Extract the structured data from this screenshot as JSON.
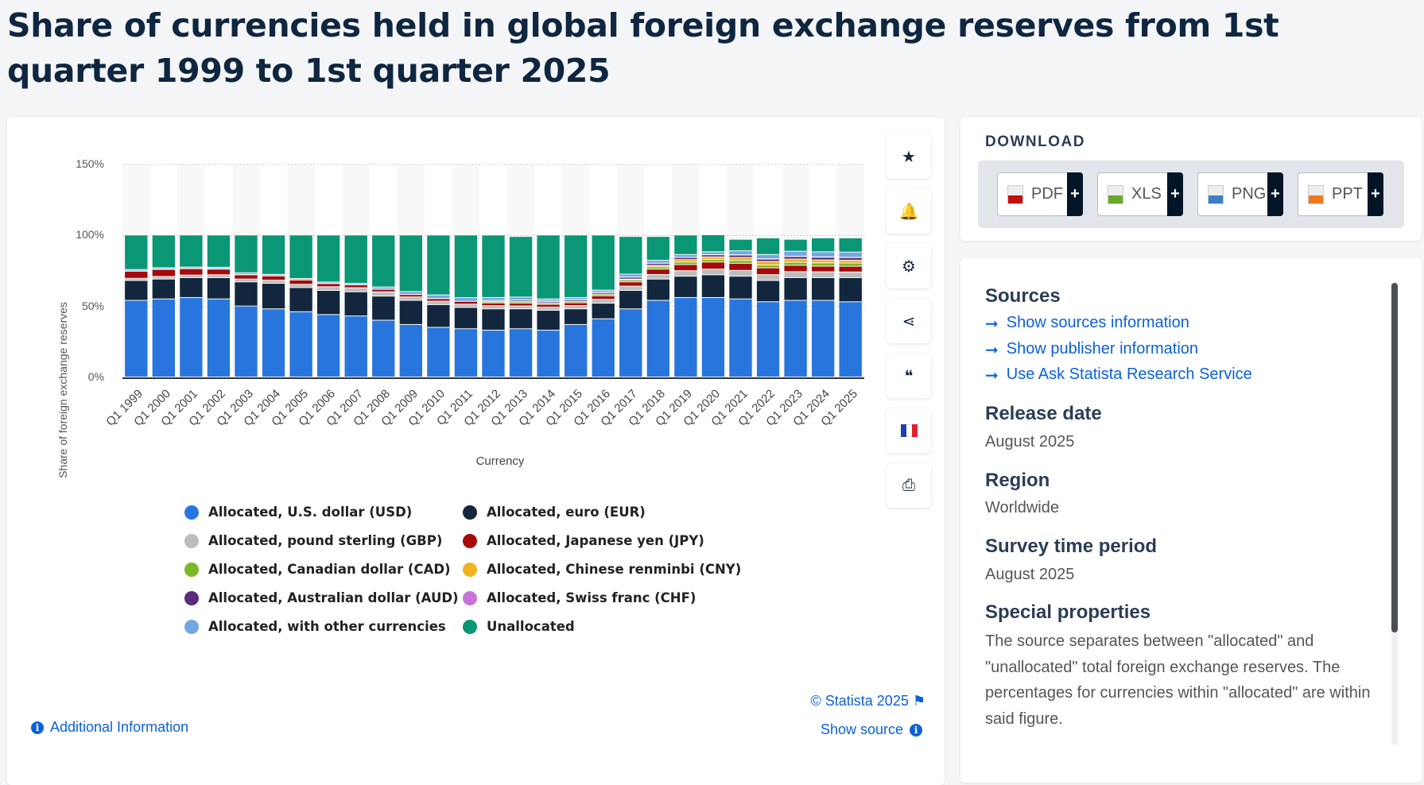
{
  "title": "Share of currencies held in global foreign exchange reserves from 1st quarter 1999 to 1st quarter 2025",
  "chart_data": {
    "type": "bar",
    "stacked": true,
    "categories": [
      "Q1 1999",
      "Q1 2000",
      "Q1 2001",
      "Q1 2002",
      "Q1 2003",
      "Q1 2004",
      "Q1 2005",
      "Q1 2006",
      "Q1 2007",
      "Q1 2008",
      "Q1 2009",
      "Q1 2010",
      "Q1 2011",
      "Q1 2012",
      "Q1 2013",
      "Q1 2014",
      "Q1 2015",
      "Q1 2016",
      "Q1 2017",
      "Q1 2018",
      "Q1 2019",
      "Q1 2020",
      "Q1 2021",
      "Q1 2022",
      "Q1 2023",
      "Q1 2024",
      "Q1 2025"
    ],
    "xlabel": "Currency",
    "ylabel": "Share of foreign exchange reserves",
    "yticks": [
      "0%",
      "50%",
      "100%",
      "150%"
    ],
    "ylim": [
      0,
      150
    ],
    "grid": true,
    "legend_position": "bottom",
    "series": [
      {
        "name": "Allocated, U.S. dollar (USD)",
        "color": "#2876dd",
        "values": [
          54,
          55,
          56,
          55,
          50,
          48,
          46,
          44,
          43,
          40,
          37,
          35,
          34,
          33,
          34,
          33,
          37,
          41,
          48,
          54,
          56,
          56,
          55,
          53,
          54,
          54,
          53
        ]
      },
      {
        "name": "Allocated, euro (EUR)",
        "color": "#12263e",
        "values": [
          14,
          14,
          14,
          15,
          17,
          18,
          17,
          17,
          17,
          17,
          17,
          16,
          15,
          15,
          14,
          14,
          11,
          11,
          13,
          15,
          15,
          16,
          16,
          15,
          16,
          16,
          17
        ]
      },
      {
        "name": "Allocated, pound sterling (GBP)",
        "color": "#bdbdbd",
        "values": [
          1.5,
          1.8,
          1.8,
          2,
          2,
          2.2,
          2.3,
          2.6,
          2.9,
          3,
          2.4,
          2.4,
          2.3,
          2.2,
          2.1,
          2.2,
          2.3,
          2.7,
          3,
          3.2,
          3.9,
          4,
          4.1,
          4.1,
          4.2,
          4.1,
          4
        ]
      },
      {
        "name": "Allocated, Japanese yen (JPY)",
        "color": "#a60a0b",
        "values": [
          5,
          5,
          4.5,
          4,
          3,
          3,
          3,
          2.2,
          2,
          1.8,
          1.7,
          1.8,
          2,
          2,
          2,
          2,
          2,
          2.5,
          3,
          3.8,
          4.3,
          5,
          5,
          4.8,
          4.5,
          4,
          4
        ]
      },
      {
        "name": "Allocated, Canadian dollar (CAD)",
        "color": "#7ab828",
        "values": [
          0,
          0,
          0,
          0,
          0,
          0,
          0,
          0,
          0,
          0,
          0,
          0,
          0,
          0.9,
          1,
          1.1,
          1,
          1.2,
          1.4,
          1.6,
          1.8,
          1.8,
          2,
          2,
          2.1,
          2.3,
          2.3
        ]
      },
      {
        "name": "Allocated, Chinese renminbi (CNY)",
        "color": "#f0b421",
        "values": [
          0,
          0,
          0,
          0,
          0,
          0,
          0,
          0,
          0,
          0,
          0,
          0,
          0,
          0,
          0,
          0,
          0,
          0,
          0.6,
          1.1,
          1.7,
          1.8,
          2.1,
          2.5,
          2.3,
          2.1,
          2
        ]
      },
      {
        "name": "Allocated, Australian dollar (AUD)",
        "color": "#5b2a7c",
        "values": [
          0,
          0,
          0,
          0,
          0,
          0,
          0,
          0,
          0,
          0,
          0,
          0,
          0,
          0.8,
          1,
          1,
          1,
          1.1,
          1.3,
          1.4,
          1.5,
          1.5,
          1.7,
          1.7,
          1.8,
          1.9,
          1.8
        ]
      },
      {
        "name": "Allocated, Swiss franc (CHF)",
        "color": "#c873d9",
        "values": [
          0.2,
          0.2,
          0.2,
          0.3,
          0.2,
          0.1,
          0.1,
          0.1,
          0.1,
          0.1,
          0.1,
          0.1,
          0.1,
          0.1,
          0.2,
          0.2,
          0.2,
          0.2,
          0.2,
          0.1,
          0.1,
          0.1,
          0.2,
          0.2,
          0.2,
          0.2,
          0.2
        ]
      },
      {
        "name": "Allocated, with other currencies",
        "color": "#74a6e3",
        "values": [
          1,
          1,
          1,
          1,
          1.2,
          1,
          1,
          1,
          1,
          1.5,
          2,
          2.5,
          2.5,
          2,
          2,
          1.5,
          1.5,
          1.5,
          2,
          2,
          2,
          2,
          2.8,
          3,
          3.5,
          3.6,
          3.7
        ]
      },
      {
        "name": "Unallocated",
        "color": "#0a9775",
        "values": [
          24.3,
          23,
          22.5,
          22.7,
          26.6,
          27.7,
          30.6,
          33.1,
          34,
          36.6,
          39.8,
          42.2,
          44.1,
          44,
          42.7,
          45,
          44,
          38.8,
          26.5,
          16.8,
          13.7,
          12,
          8.1,
          11.7,
          8.4,
          9.8,
          10
        ]
      }
    ]
  },
  "tools": [
    {
      "icon": "star-icon",
      "glyph": "★"
    },
    {
      "icon": "bell-icon",
      "glyph": "🔔"
    },
    {
      "icon": "gear-icon",
      "glyph": "⚙"
    },
    {
      "icon": "share-icon",
      "glyph": "⋖"
    },
    {
      "icon": "quote-icon",
      "glyph": "❝"
    },
    {
      "icon": "flag-france-icon",
      "glyph": ""
    },
    {
      "icon": "print-icon",
      "glyph": "⎙"
    }
  ],
  "footer": {
    "copyright": "© Statista 2025",
    "show_source": "Show source",
    "additional_info": "Additional Information"
  },
  "download": {
    "title": "DOWNLOAD",
    "buttons": [
      {
        "label": "PDF",
        "color": "#c80d0d"
      },
      {
        "label": "XLS",
        "color": "#6aa828"
      },
      {
        "label": "PNG",
        "color": "#3b7fc4"
      },
      {
        "label": "PPT",
        "color": "#ee7a20"
      }
    ]
  },
  "info": {
    "sources_title": "Sources",
    "links": [
      "Show sources information",
      "Show publisher information",
      "Use Ask Statista Research Service"
    ],
    "release_title": "Release date",
    "release": "August 2025",
    "region_title": "Region",
    "region": "Worldwide",
    "survey_title": "Survey time period",
    "survey": "August 2025",
    "special_title": "Special properties",
    "special": "The source separates between \"allocated\" and \"unallocated\" total foreign exchange reserves. The percentages for currencies within \"allocated\" are within said figure."
  }
}
